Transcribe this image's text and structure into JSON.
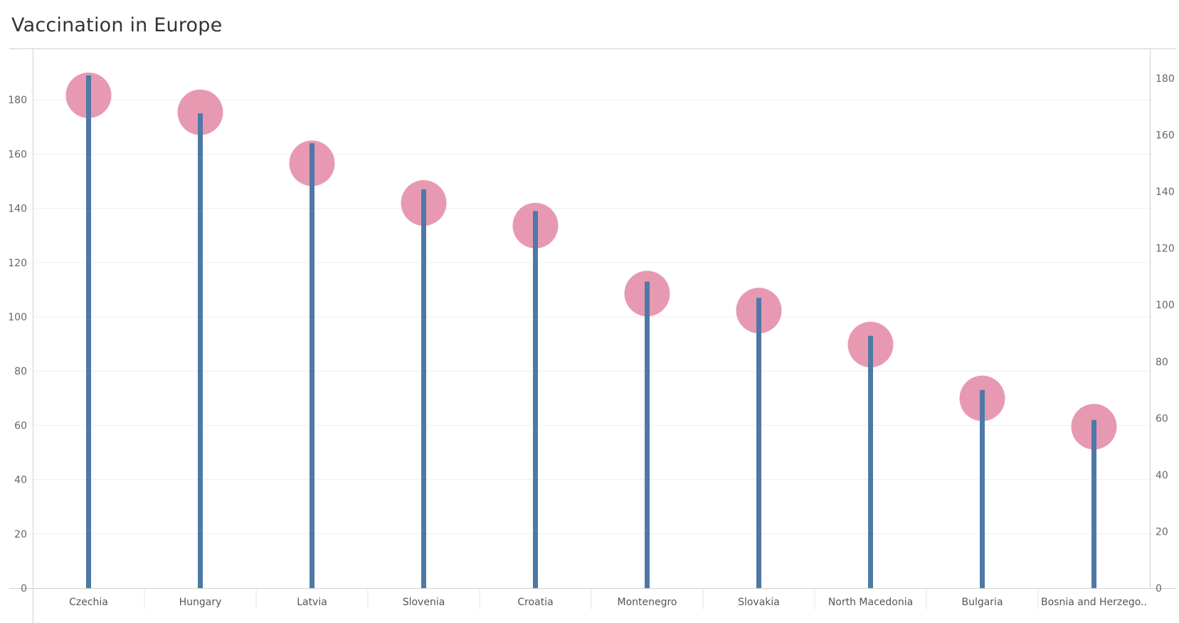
{
  "chart_data": {
    "type": "lollipop",
    "title": "Vaccination in Europe",
    "categories": [
      "Czechia",
      "Hungary",
      "Latvia",
      "Slovenia",
      "Croatia",
      "Montenegro",
      "Slovakia",
      "North Macedonia",
      "Bulgaria",
      "Bosnia and Herzego.."
    ],
    "series": [
      {
        "values": [
          189,
          175,
          164,
          147,
          139,
          113,
          107,
          93,
          73,
          62
        ]
      },
      {
        "values": [
          174,
          168,
          150,
          136,
          128,
          104,
          98,
          86,
          67,
          57
        ]
      }
    ],
    "y_axis_left": {
      "ylim": [
        0,
        190
      ],
      "ticks": [
        0,
        20,
        40,
        60,
        80,
        100,
        120,
        140,
        160,
        180
      ]
    },
    "y_axis_right": {
      "ylim": [
        0,
        186
      ],
      "ticks": [
        0,
        20,
        40,
        60,
        80,
        100,
        120,
        140,
        160,
        180
      ]
    },
    "grid": true,
    "colors": {
      "stem": "#4e79a7",
      "circle": "#e899b2",
      "grid": "#eeeeee",
      "axis": "#d0d0d0",
      "text": "#666666"
    }
  }
}
